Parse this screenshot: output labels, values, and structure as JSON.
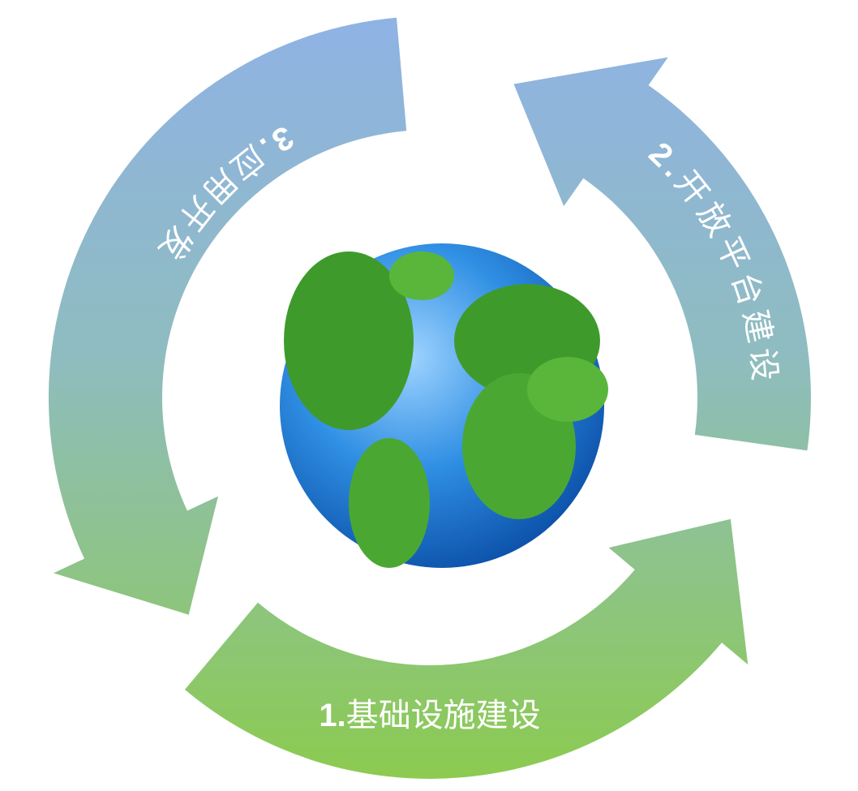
{
  "steps": [
    {
      "number": "1.",
      "label": "基础设施建设"
    },
    {
      "number": "2.",
      "label": "开放平台建设"
    },
    {
      "number": "3.",
      "label": "应用开发"
    }
  ]
}
